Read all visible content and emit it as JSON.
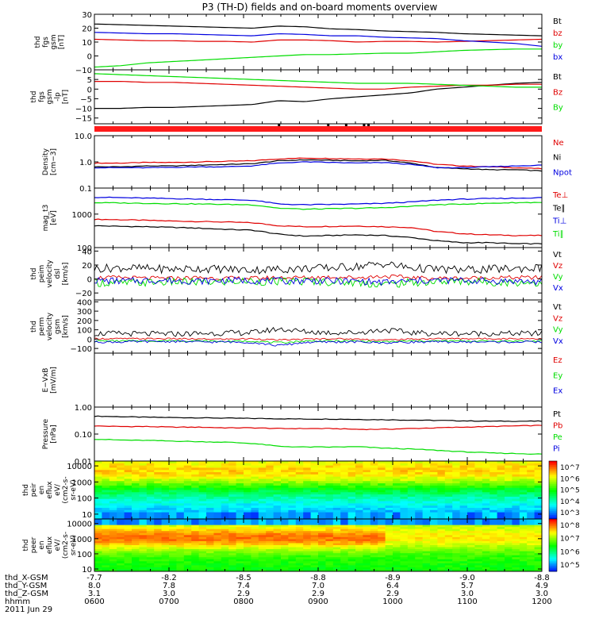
{
  "title": "P3 (TH-D) fields and on-board moments overview",
  "colors": {
    "black": "#000000",
    "red": "#e00000",
    "green": "#00dd00",
    "blue": "#0000e0"
  },
  "time_axis": {
    "start": "0600",
    "end": "1200",
    "tick_times": [
      "0600",
      "0700",
      "0800",
      "0900",
      "1000",
      "1100",
      "1200"
    ],
    "footer_rows": [
      {
        "label": "thd_X-GSM",
        "values": [
          "-7.7",
          "-8.2",
          "-8.5",
          "-8.8",
          "-8.9",
          "-9.0",
          "-8.8"
        ]
      },
      {
        "label": "thd_Y-GSM",
        "values": [
          "8.0",
          "7.8",
          "7.4",
          "7.0",
          "6.4",
          "5.7",
          "4.9"
        ]
      },
      {
        "label": "thd_Z-GSM",
        "values": [
          "3.1",
          "3.0",
          "2.9",
          "2.9",
          "2.9",
          "3.0",
          "3.0"
        ]
      },
      {
        "label": "hhmm",
        "values": [
          "0600",
          "0700",
          "0800",
          "0900",
          "1000",
          "1100",
          "1200"
        ]
      }
    ],
    "date": "2011 Jun 29"
  },
  "chart_data": [
    {
      "type": "line",
      "title": "fgs gsm",
      "ylabel_lines": [
        "thd",
        "fgs",
        "gsm",
        "[nT]"
      ],
      "ylim": [
        -10,
        30
      ],
      "yticks": [
        -10,
        0,
        10,
        20,
        30
      ],
      "ytick_labels": [
        "−10",
        "0",
        "10",
        "20",
        "30"
      ],
      "scale": "linear",
      "series": [
        {
          "name": "Bt",
          "color": "black",
          "values": [
            23,
            22.5,
            22,
            21.5,
            21,
            20.5,
            20,
            21.5,
            21,
            19.5,
            19,
            18,
            17.5,
            17,
            16,
            15.5,
            15,
            14.5
          ]
        },
        {
          "name": "bz",
          "color": "red",
          "values": [
            12,
            11.5,
            11,
            11,
            10.5,
            10.5,
            10,
            11.5,
            11.5,
            11,
            10,
            10.5,
            10.5,
            10,
            10.5,
            11,
            11.5,
            12
          ]
        },
        {
          "name": "by",
          "color": "green",
          "values": [
            -8,
            -7,
            -5,
            -4,
            -3,
            -2,
            -1,
            0,
            1,
            1,
            1.5,
            2,
            2,
            3,
            4,
            4.5,
            5,
            5
          ]
        },
        {
          "name": "bx",
          "color": "blue",
          "values": [
            17,
            16.5,
            16,
            16,
            15.5,
            15,
            14.5,
            16,
            15.5,
            14.5,
            14.5,
            13.5,
            13,
            12.5,
            11,
            10,
            9,
            7
          ]
        }
      ]
    },
    {
      "type": "line",
      "title": "fgs gsm lp",
      "ylabel_lines": [
        "thd",
        "fgs",
        "gsm",
        "-lp",
        "[nT]"
      ],
      "ylim": [
        -18,
        10
      ],
      "yticks": [
        -15,
        -10,
        -5,
        0,
        5
      ],
      "ytick_labels": [
        "−15",
        "−10",
        "−5",
        "0",
        "5"
      ],
      "scale": "linear",
      "series": [
        {
          "name": "Bt",
          "color": "black",
          "values": [
            -10,
            -10,
            -9.5,
            -9.5,
            -9,
            -8.5,
            -8,
            -6,
            -6.5,
            -5,
            -4,
            -3,
            -2,
            0,
            1,
            2,
            3,
            3.5
          ]
        },
        {
          "name": "Bz",
          "color": "red",
          "values": [
            4,
            4,
            3.5,
            3.5,
            3,
            2.5,
            2,
            1.5,
            1,
            0.5,
            0,
            0,
            1,
            1.5,
            2,
            2,
            2.5,
            2.5
          ]
        },
        {
          "name": "By",
          "color": "green",
          "values": [
            8,
            7.5,
            7,
            6.5,
            6,
            5.5,
            5,
            4.5,
            4,
            3.5,
            3,
            3,
            3,
            2.5,
            2,
            1.5,
            1,
            1
          ]
        }
      ]
    },
    {
      "type": "line",
      "title": "density",
      "ylabel_lines": [
        "Density",
        "[cm−3]"
      ],
      "ylim": [
        0.1,
        10
      ],
      "yticks": [
        0.1,
        1,
        10
      ],
      "ytick_labels": [
        "0.1",
        "1.0",
        "10.0"
      ],
      "scale": "log",
      "series": [
        {
          "name": "Ne",
          "color": "red",
          "values": [
            0.9,
            0.9,
            0.95,
            0.95,
            1,
            1.05,
            1.1,
            1.3,
            1.4,
            1.35,
            1.3,
            1.3,
            1.1,
            0.8,
            0.7,
            0.65,
            0.6,
            0.55
          ]
        },
        {
          "name": "Ni",
          "color": "black",
          "values": [
            0.65,
            0.65,
            0.7,
            0.7,
            0.75,
            0.8,
            0.85,
            1.1,
            1.2,
            1.15,
            1.1,
            1.15,
            0.9,
            0.6,
            0.55,
            0.5,
            0.5,
            0.45
          ]
        },
        {
          "name": "Npot",
          "color": "blue",
          "values": [
            0.6,
            0.6,
            0.6,
            0.62,
            0.65,
            0.65,
            0.7,
            0.9,
            1.0,
            0.95,
            0.9,
            0.95,
            0.8,
            0.6,
            0.6,
            0.65,
            0.7,
            0.75
          ]
        }
      ]
    },
    {
      "type": "line",
      "title": "temperature",
      "ylabel_lines": [
        "mag_t3",
        "[eV]"
      ],
      "ylim": [
        100,
        6000
      ],
      "yticks": [
        100,
        1000
      ],
      "ytick_labels": [
        "100",
        "1000"
      ],
      "scale": "log",
      "series": [
        {
          "name": "Te⊥",
          "color": "red",
          "values": [
            700,
            680,
            650,
            620,
            600,
            580,
            550,
            450,
            420,
            430,
            440,
            420,
            400,
            300,
            260,
            240,
            230,
            230
          ]
        },
        {
          "name": "Te∥",
          "color": "black",
          "values": [
            450,
            430,
            420,
            400,
            380,
            350,
            330,
            250,
            220,
            230,
            240,
            230,
            200,
            160,
            140,
            140,
            130,
            130
          ]
        },
        {
          "name": "Ti⊥",
          "color": "blue",
          "values": [
            3200,
            3100,
            3000,
            2900,
            2800,
            2700,
            2600,
            2000,
            1900,
            1950,
            2000,
            2100,
            2300,
            2600,
            2800,
            2900,
            3000,
            3100
          ]
        },
        {
          "name": "Ti∥",
          "color": "green",
          "values": [
            2200,
            2150,
            2100,
            2050,
            2000,
            1950,
            1900,
            1500,
            1400,
            1450,
            1500,
            1550,
            1700,
            1900,
            2000,
            2100,
            2200,
            2250
          ]
        }
      ]
    },
    {
      "type": "line",
      "title": "peim velocity dsl",
      "ylabel_lines": [
        "thd",
        "peim",
        "velocity",
        "dsl",
        "[km/s]"
      ],
      "ylim": [
        -30,
        45
      ],
      "yticks": [
        -20,
        0,
        20,
        40
      ],
      "ytick_labels": [
        "−20",
        "0",
        "20",
        "40"
      ],
      "scale": "linear",
      "series": [
        {
          "name": "Vt",
          "color": "black",
          "values": [
            15,
            16,
            15,
            14,
            15,
            14,
            13,
            14,
            15,
            16,
            18,
            22,
            16,
            14,
            13,
            14,
            15,
            16
          ]
        },
        {
          "name": "Vz",
          "color": "red",
          "values": [
            2,
            2,
            1,
            1,
            2,
            1,
            1,
            2,
            2,
            3,
            2,
            4,
            2,
            1,
            1,
            2,
            2,
            2
          ]
        },
        {
          "name": "Vy",
          "color": "green",
          "values": [
            -5,
            -6,
            -5,
            -4,
            -5,
            -4,
            -3,
            -4,
            -3,
            -4,
            -5,
            -8,
            -5,
            -4,
            -3,
            -4,
            -5,
            -5
          ]
        },
        {
          "name": "Vx",
          "color": "blue",
          "values": [
            -2,
            -3,
            -2,
            -2,
            -3,
            -2,
            -2,
            -3,
            -2,
            -3,
            -3,
            -5,
            -3,
            -2,
            -2,
            -3,
            -3,
            -4
          ]
        }
      ]
    },
    {
      "type": "line",
      "title": "perm velocity gsm",
      "ylabel_lines": [
        "thd",
        "perm",
        "velocity",
        "gsm",
        "[km/s]"
      ],
      "ylim": [
        -150,
        420
      ],
      "yticks": [
        -100,
        0,
        100,
        200,
        300,
        400
      ],
      "ytick_labels": [
        "−100",
        "0",
        "100",
        "200",
        "300",
        "400"
      ],
      "scale": "linear",
      "series": [
        {
          "name": "Vt",
          "color": "black",
          "values": [
            60,
            60,
            55,
            55,
            60,
            65,
            70,
            110,
            80,
            70,
            70,
            100,
            70,
            60,
            60,
            60,
            60,
            60
          ]
        },
        {
          "name": "Vz",
          "color": "red",
          "values": [
            5,
            5,
            5,
            5,
            0,
            0,
            5,
            -10,
            0,
            5,
            0,
            -10,
            0,
            5,
            5,
            5,
            5,
            5
          ]
        },
        {
          "name": "Vy",
          "color": "green",
          "values": [
            -20,
            -20,
            -20,
            -15,
            -20,
            -25,
            -20,
            -40,
            -20,
            -20,
            -20,
            -30,
            -20,
            -20,
            -20,
            -20,
            -20,
            -20
          ]
        },
        {
          "name": "Vx",
          "color": "blue",
          "values": [
            -30,
            -30,
            -25,
            -25,
            -30,
            -30,
            -35,
            -70,
            -35,
            -30,
            -30,
            -40,
            -30,
            -30,
            -30,
            -30,
            -30,
            -30
          ]
        }
      ]
    },
    {
      "type": "line",
      "title": "E-VxB",
      "ylabel_lines": [
        "E−VxB",
        "[mV/m]"
      ],
      "ylim": [
        0,
        1
      ],
      "yticks": [],
      "ytick_labels": [],
      "scale": "linear",
      "series": [
        {
          "name": "Ez",
          "color": "red",
          "values": []
        },
        {
          "name": "Ey",
          "color": "green",
          "values": []
        },
        {
          "name": "Ex",
          "color": "blue",
          "values": []
        }
      ]
    },
    {
      "type": "line",
      "title": "pressure",
      "ylabel_lines": [
        "Pressure",
        "[nPa]"
      ],
      "ylim": [
        0.01,
        1.0
      ],
      "yticks": [
        0.01,
        0.1,
        1.0
      ],
      "ytick_labels": [
        "0.01",
        "0.10",
        "1.00"
      ],
      "scale": "log",
      "series": [
        {
          "name": "Pt",
          "color": "black",
          "values": [
            0.46,
            0.44,
            0.42,
            0.41,
            0.4,
            0.39,
            0.38,
            0.37,
            0.36,
            0.36,
            0.35,
            0.34,
            0.33,
            0.32,
            0.31,
            0.3,
            0.3,
            0.3
          ]
        },
        {
          "name": "Pb",
          "color": "red",
          "values": [
            0.2,
            0.19,
            0.19,
            0.18,
            0.18,
            0.17,
            0.17,
            0.16,
            0.16,
            0.16,
            0.15,
            0.15,
            0.16,
            0.17,
            0.18,
            0.19,
            0.2,
            0.21
          ]
        },
        {
          "name": "Pe",
          "color": "green",
          "values": [
            0.065,
            0.06,
            0.058,
            0.055,
            0.052,
            0.05,
            0.045,
            0.035,
            0.033,
            0.033,
            0.034,
            0.03,
            0.028,
            0.025,
            0.022,
            0.02,
            0.019,
            0.018
          ]
        },
        {
          "name": "Pi",
          "color": "blue",
          "values": []
        }
      ]
    },
    {
      "type": "heatmap",
      "title": "peir en eflux",
      "ylabel_lines": [
        "thd",
        "peir",
        "en",
        "eflux",
        "eV/",
        "(cm2-s-",
        "sr-eV)"
      ],
      "ylim": [
        5,
        20000
      ],
      "yticks": [
        10,
        100,
        1000,
        10000
      ],
      "ytick_labels": [
        "10",
        "100",
        "1000",
        "10000"
      ],
      "scale": "log",
      "colorbar": {
        "ticks": [
          "10^3",
          "10^4",
          "10^5",
          "10^6",
          "10^7"
        ]
      }
    },
    {
      "type": "heatmap",
      "title": "peer en eflux",
      "ylabel_lines": [
        "thd",
        "peer",
        "en",
        "eflux",
        "eV/",
        "(cm2-s-",
        "sr-eV)"
      ],
      "ylim": [
        7,
        20000
      ],
      "yticks": [
        10,
        100,
        1000,
        10000
      ],
      "ytick_labels": [
        "10",
        "100",
        "1000",
        "10000"
      ],
      "scale": "log",
      "colorbar": {
        "ticks": [
          "10^5",
          "10^6",
          "10^7",
          "10^8"
        ]
      }
    }
  ]
}
